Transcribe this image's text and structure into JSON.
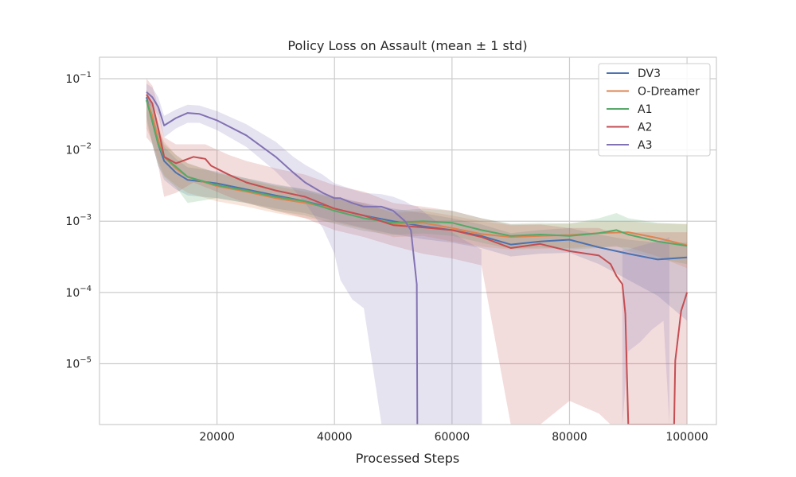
{
  "chart_data": {
    "type": "line",
    "title": "Policy Loss on Assault (mean ± 1 std)",
    "xlabel": "Processed Steps",
    "ylabel": "",
    "xlim": [
      0,
      105000
    ],
    "ylim": [
      1.4e-06,
      0.2
    ],
    "yscale": "log",
    "grid": true,
    "legend_position": "top-right",
    "x_ticks": [
      20000,
      40000,
      60000,
      80000,
      100000
    ],
    "x_tick_labels": [
      "20000",
      "40000",
      "60000",
      "80000",
      "100000"
    ],
    "y_ticks": [
      {
        "value": 0.1,
        "base": "10",
        "exp": "−1"
      },
      {
        "value": 0.01,
        "base": "10",
        "exp": "−2"
      },
      {
        "value": 0.001,
        "base": "10",
        "exp": "−3"
      },
      {
        "value": 0.0001,
        "base": "10",
        "exp": "−4"
      },
      {
        "value": 1e-05,
        "base": "10",
        "exp": "−5"
      }
    ],
    "series": [
      {
        "name": "DV3",
        "color": "#4c72b0",
        "x": [
          8000,
          9000,
          10000,
          11000,
          13000,
          15000,
          20000,
          25000,
          30000,
          35000,
          40000,
          45000,
          50000,
          55000,
          60000,
          65000,
          70000,
          75000,
          80000,
          85000,
          90000,
          95000,
          100000
        ],
        "y": [
          0.055,
          0.025,
          0.012,
          0.007,
          0.0048,
          0.0038,
          0.0034,
          0.0028,
          0.0023,
          0.0019,
          0.0015,
          0.0012,
          0.001,
          0.00085,
          0.00075,
          0.00062,
          0.00047,
          0.00052,
          0.00055,
          0.00043,
          0.00035,
          0.00029,
          0.00031
        ],
        "lower": [
          0.03,
          0.012,
          0.006,
          0.0038,
          0.0028,
          0.0023,
          0.0021,
          0.0018,
          0.0015,
          0.0013,
          0.001,
          0.0008,
          0.00066,
          0.00056,
          0.0005,
          0.00042,
          0.00032,
          0.00035,
          0.00036,
          0.00025,
          0.00015,
          9e-05,
          4e-05
        ],
        "upper": [
          0.07,
          0.04,
          0.02,
          0.011,
          0.0075,
          0.0057,
          0.005,
          0.004,
          0.0033,
          0.0028,
          0.0022,
          0.0018,
          0.0015,
          0.0013,
          0.0011,
          0.0009,
          0.00068,
          0.00075,
          0.0008,
          0.00065,
          0.00055,
          0.0005,
          0.0005
        ]
      },
      {
        "name": "O-Dreamer",
        "color": "#dd8452",
        "x": [
          8000,
          9000,
          10000,
          11000,
          13000,
          15000,
          20000,
          25000,
          30000,
          35000,
          40000,
          45000,
          50000,
          55000,
          60000,
          65000,
          70000,
          75000,
          80000,
          85000,
          90000,
          95000,
          100000
        ],
        "y": [
          0.05,
          0.03,
          0.014,
          0.008,
          0.0055,
          0.0042,
          0.0031,
          0.0026,
          0.0021,
          0.0018,
          0.0015,
          0.0012,
          0.0009,
          0.00095,
          0.0008,
          0.00066,
          0.0006,
          0.00062,
          0.00064,
          0.00068,
          0.0007,
          0.00058,
          0.00046
        ],
        "lower": [
          0.02,
          0.013,
          0.007,
          0.0044,
          0.0032,
          0.0025,
          0.0019,
          0.0016,
          0.0013,
          0.0011,
          0.00095,
          0.00078,
          0.0006,
          0.00062,
          0.00052,
          0.00044,
          0.0004,
          0.00041,
          0.00042,
          0.00044,
          0.00043,
          0.00032,
          0.00022
        ],
        "upper": [
          0.07,
          0.045,
          0.022,
          0.013,
          0.0085,
          0.0065,
          0.0047,
          0.0038,
          0.0031,
          0.0026,
          0.0021,
          0.0018,
          0.0013,
          0.0014,
          0.0012,
          0.001,
          0.00088,
          0.0009,
          0.00094,
          0.001,
          0.001,
          0.00093,
          0.00092
        ]
      },
      {
        "name": "A1",
        "color": "#55a868",
        "x": [
          8000,
          9000,
          10000,
          11000,
          13000,
          15000,
          20000,
          25000,
          30000,
          35000,
          40000,
          45000,
          50000,
          55000,
          60000,
          65000,
          70000,
          75000,
          80000,
          85000,
          88000,
          90000,
          95000,
          100000
        ],
        "y": [
          0.05,
          0.025,
          0.012,
          0.008,
          0.0058,
          0.0042,
          0.0032,
          0.0027,
          0.0022,
          0.0019,
          0.0014,
          0.0011,
          0.00095,
          0.001,
          0.00095,
          0.00075,
          0.00062,
          0.00065,
          0.00062,
          0.00068,
          0.00075,
          0.00065,
          0.00052,
          0.00045
        ],
        "lower": [
          0.025,
          0.012,
          0.006,
          0.0042,
          0.003,
          0.0018,
          0.0021,
          0.0018,
          0.0014,
          0.0012,
          0.00092,
          0.00073,
          0.00064,
          0.00067,
          0.00062,
          0.0005,
          0.00041,
          0.00043,
          0.0004,
          0.00042,
          0.00045,
          0.00038,
          0.0003,
          0.00025
        ],
        "upper": [
          0.07,
          0.04,
          0.02,
          0.012,
          0.0085,
          0.0065,
          0.0048,
          0.004,
          0.0032,
          0.0028,
          0.0021,
          0.0017,
          0.0014,
          0.0015,
          0.0014,
          0.0011,
          0.00092,
          0.00095,
          0.00092,
          0.0011,
          0.0013,
          0.0011,
          0.00095,
          0.0009
        ]
      },
      {
        "name": "A2",
        "color": "#c44e52",
        "x": [
          8000,
          9000,
          10000,
          11000,
          13000,
          16000,
          18000,
          19000,
          22000,
          25000,
          30000,
          35000,
          40000,
          45000,
          50000,
          55000,
          60000,
          65000,
          70000,
          75000,
          80000,
          85000,
          87000,
          88000,
          89000,
          89500,
          90000,
          97800,
          98000,
          99000,
          100000
        ],
        "y": [
          0.06,
          0.045,
          0.02,
          0.008,
          0.0065,
          0.008,
          0.0075,
          0.006,
          0.0045,
          0.0035,
          0.0027,
          0.0022,
          0.0015,
          0.0012,
          0.00088,
          0.00082,
          0.00075,
          0.0006,
          0.00042,
          0.00048,
          0.00038,
          0.00033,
          0.00025,
          0.00017,
          0.00013,
          5e-05,
          1.4e-06,
          1.4e-06,
          1.1e-05,
          5.5e-05,
          0.0001
        ],
        "lower": [
          0.015,
          0.012,
          0.006,
          0.0022,
          0.0025,
          0.0035,
          0.003,
          0.0028,
          0.0022,
          0.0018,
          0.0014,
          0.0011,
          0.00075,
          0.0006,
          0.00045,
          0.00035,
          0.0003,
          0.00024,
          1.4e-06,
          1.4e-06,
          3e-06,
          2e-06,
          1.4e-06,
          1.4e-06,
          1.4e-06,
          1.4e-06,
          1.4e-06,
          1.4e-06,
          1.4e-06,
          1.4e-06,
          1.4e-06
        ],
        "upper": [
          0.1,
          0.08,
          0.04,
          0.015,
          0.012,
          0.012,
          0.012,
          0.011,
          0.0085,
          0.007,
          0.0055,
          0.0045,
          0.0032,
          0.0026,
          0.0018,
          0.0016,
          0.0014,
          0.0011,
          0.0009,
          0.0009,
          0.0008,
          0.0008,
          0.0007,
          0.0007,
          0.0007,
          0.0007,
          0.0007,
          0.0007,
          0.0007,
          0.0007,
          0.0007
        ]
      },
      {
        "name": "A3",
        "color": "#8172b3",
        "x": [
          8000,
          9000,
          10000,
          11000,
          13000,
          15000,
          17000,
          20000,
          25000,
          30000,
          33000,
          35000,
          38000,
          40000,
          41000,
          43000,
          45000,
          48000,
          50000,
          52000,
          53000,
          54000,
          54100
        ],
        "y": [
          0.065,
          0.055,
          0.04,
          0.022,
          0.028,
          0.033,
          0.032,
          0.026,
          0.016,
          0.008,
          0.0048,
          0.0035,
          0.0025,
          0.0021,
          0.0021,
          0.0018,
          0.0016,
          0.0016,
          0.0014,
          0.001,
          0.00075,
          0.00013,
          1.4e-06
        ],
        "lower": [
          0.045,
          0.04,
          0.03,
          0.015,
          0.02,
          0.024,
          0.024,
          0.019,
          0.011,
          0.005,
          0.0028,
          0.0018,
          0.0008,
          0.00035,
          0.00015,
          8e-05,
          6e-05,
          1.4e-06,
          1.4e-06,
          1.4e-06,
          1.4e-06,
          1.4e-06,
          1.4e-06
        ],
        "upper": [
          0.085,
          0.075,
          0.055,
          0.03,
          0.037,
          0.043,
          0.042,
          0.035,
          0.023,
          0.013,
          0.008,
          0.0062,
          0.0045,
          0.0034,
          0.0032,
          0.0028,
          0.0025,
          0.0024,
          0.0022,
          0.0019,
          0.0017,
          0.0016,
          0.0016
        ]
      }
    ],
    "extra_bands": [
      {
        "name": "A3",
        "color": "#8172b3",
        "x": [
          54100,
          56000,
          58000,
          60000,
          62000,
          65000,
          65100
        ],
        "lower": [
          1.4e-06,
          1.4e-06,
          1.4e-06,
          1.4e-06,
          1.4e-06,
          1.4e-06,
          1.4e-06
        ],
        "upper": [
          0.0016,
          0.0012,
          0.0009,
          0.0007,
          0.00055,
          0.0004,
          1.4e-06
        ]
      },
      {
        "name": "A3",
        "color": "#8172b3",
        "x": [
          89000,
          90000,
          92000,
          94000,
          96000,
          97000
        ],
        "lower": [
          1.4e-06,
          1.5e-05,
          2e-05,
          3e-05,
          4e-05,
          1.4e-06
        ],
        "upper": [
          0.0004,
          0.0004,
          0.00045,
          0.0005,
          0.00055,
          0.0006
        ]
      }
    ]
  }
}
